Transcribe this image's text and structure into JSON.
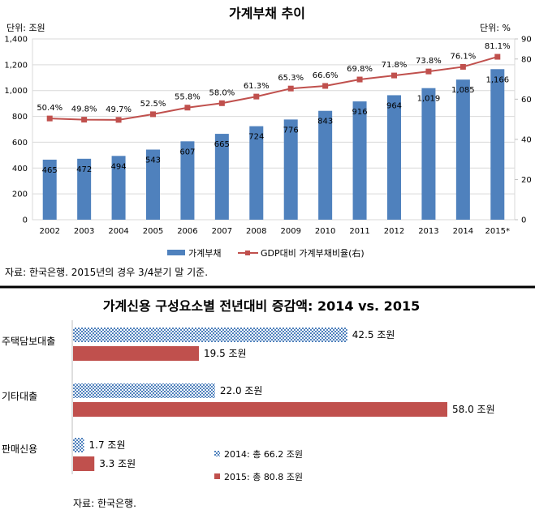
{
  "chart_data": [
    {
      "type": "bar+line",
      "title": "가계부채 추이",
      "left_unit": "단위: 조원",
      "right_unit": "단위: %",
      "categories": [
        "2002",
        "2003",
        "2004",
        "2005",
        "2006",
        "2007",
        "2008",
        "2009",
        "2010",
        "2011",
        "2012",
        "2013",
        "2014",
        "2015*"
      ],
      "series": [
        {
          "name": "가계부채",
          "type": "bar",
          "axis": "left",
          "color": "#4f81bd",
          "values": [
            465,
            472,
            494,
            543,
            607,
            665,
            724,
            776,
            843,
            916,
            964,
            1019,
            1085,
            1166
          ],
          "labels": [
            "465",
            "472",
            "494",
            "543",
            "607",
            "665",
            "724",
            "776",
            "843",
            "916",
            "964",
            "1,019",
            "1,085",
            "1,166"
          ]
        },
        {
          "name": "GDP대비 가계부채비율(右)",
          "type": "line",
          "axis": "right",
          "color": "#c0504d",
          "values": [
            50.4,
            49.8,
            49.7,
            52.5,
            55.8,
            58.0,
            61.3,
            65.3,
            66.6,
            69.8,
            71.8,
            73.8,
            76.1,
            81.1
          ],
          "labels": [
            "50.4%",
            "49.8%",
            "49.7%",
            "52.5%",
            "55.8%",
            "58.0%",
            "61.3%",
            "65.3%",
            "66.6%",
            "69.8%",
            "71.8%",
            "73.8%",
            "76.1%",
            "81.1%"
          ]
        }
      ],
      "y_left": {
        "min": 0,
        "max": 1400,
        "ticks": [
          "0",
          "200",
          "400",
          "600",
          "800",
          "1,000",
          "1,200",
          "1,400"
        ]
      },
      "y_right": {
        "min": 0,
        "max": 90,
        "ticks": [
          "0",
          "20",
          "40",
          "60",
          "80",
          "90"
        ]
      },
      "legend_position": "bottom",
      "source": "자료: 한국은행. 2015년의 경우 3/4분기 말 기준."
    },
    {
      "type": "bar",
      "orientation": "horizontal",
      "title": "가계신용 구성요소별 전년대비 증감액: 2014 vs. 2015",
      "categories": [
        "주택담보대출",
        "기타대출",
        "판매신용"
      ],
      "series": [
        {
          "name": "2014: 총 66.2 조원",
          "pattern": "checker",
          "color": "#4f81bd",
          "values": [
            42.5,
            22.0,
            1.7
          ],
          "labels": [
            "42.5 조원",
            "22.0 조원",
            "1.7 조원"
          ]
        },
        {
          "name": "2015: 총 80.8 조원",
          "color": "#c0504d",
          "values": [
            19.5,
            58.0,
            3.3
          ],
          "labels": [
            "19.5 조원",
            "58.0 조원",
            "3.3 조원"
          ]
        }
      ],
      "x_max": 58.0,
      "legend_position": "bottom-right",
      "source": "자료: 한국은행."
    }
  ]
}
